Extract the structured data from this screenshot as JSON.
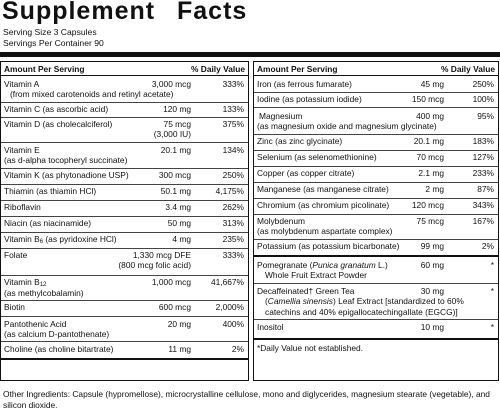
{
  "title": "Supplement Facts",
  "serving_size": "Serving Size 3 Capsules",
  "servings_per_container": "Servings Per Container 90",
  "header": {
    "amount": "Amount Per Serving",
    "dv": "% Daily Value"
  },
  "left": [
    {
      "name": "Vitamin A",
      "name2": "(from mixed carotenoids and retinyl acetate)",
      "amt": "3,000 mcg",
      "dv": "333%"
    },
    {
      "name": "Vitamin C (as ascorbic acid)",
      "amt": "120 mg",
      "dv": "133%"
    },
    {
      "name": "Vitamin D (as cholecalciferol)",
      "amt": "75 mcg",
      "amt2": "(3,000 IU)",
      "dv": "375%"
    },
    {
      "name": "Vitamin E",
      "name2": "(as d-alpha tocopheryl succinate)",
      "amt": "20.1 mg",
      "dv": "134%"
    },
    {
      "name": "Vitamin K (as phytonadione USP)",
      "amt": "300 mcg",
      "dv": "250%"
    },
    {
      "name": "Thiamin (as thiamin HCl)",
      "amt": "50.1 mg",
      "dv": "4,175%"
    },
    {
      "name": "Riboflavin",
      "amt": "3.4 mg",
      "dv": "262%"
    },
    {
      "name": "Niacin (as niacinamide)",
      "amt": "50 mg",
      "dv": "313%"
    },
    {
      "name_pre": "Vitamin B",
      "name_sub": "6",
      "name_post": " (as pyridoxine HCl)",
      "amt": "4 mg",
      "dv": "235%"
    },
    {
      "name": "Folate",
      "amt": "1,330 mcg DFE",
      "amt2": "(800 mcg folic acid)",
      "dv": "333%"
    },
    {
      "name_pre": "Vitamin B",
      "name_sub": "12",
      "name_post": "",
      "name2": "(as methylcobalamin)",
      "amt": "1,000 mcg",
      "dv": "41,667%"
    },
    {
      "name": "Biotin",
      "amt": "600 mcg",
      "dv": "2,000%"
    },
    {
      "name": "Pantothenic Acid",
      "name2": "(as calcium D-pantothenate)",
      "amt": "20 mg",
      "dv": "400%"
    },
    {
      "name": "Choline (as choline bitartrate)",
      "amt": "11 mg",
      "dv": "2%"
    }
  ],
  "right": [
    {
      "name": "Iron (as ferrous fumarate)",
      "amt": "45 mg",
      "dv": "250%"
    },
    {
      "name": "Iodine (as potassium iodide)",
      "amt": "150 mcg",
      "dv": "100%"
    },
    {
      "name": "Magnesium",
      "name2": "(as magnesium oxide and magnesium glycinate)",
      "amt": "400 mg",
      "dv": "95%"
    },
    {
      "name": "Zinc (as zinc glycinate)",
      "amt": "20.1 mg",
      "dv": "183%"
    },
    {
      "name": "Selenium (as selenomethionine)",
      "amt": "70 mcg",
      "dv": "127%"
    },
    {
      "name": "Copper (as copper citrate)",
      "amt": "2.1 mg",
      "dv": "233%"
    },
    {
      "name": "Manganese (as manganese citrate)",
      "amt": "2 mg",
      "dv": "87%"
    },
    {
      "name": "Chromium (as chromium picolinate)",
      "amt": "120 mcg",
      "dv": "343%"
    },
    {
      "name": "Molybdenum",
      "name2": "(as molybdenum aspartate complex)",
      "amt": "75 mcg",
      "dv": "167%"
    },
    {
      "name": "Potassium (as potassium bicarbonate)",
      "amt": "99 mg",
      "dv": "2%"
    },
    {
      "name_a": "Pomegranate (",
      "name_i": "Punica granatum",
      "name_b": " L.)",
      "name2": "Whole Fruit Extract Powder",
      "amt": "60 mg",
      "dv": "*"
    },
    {
      "name": "Decaffeinated† Green Tea",
      "name2_a": "(",
      "name2_i": "Camellia sinensis",
      "name2_b": ") Leaf Extract [standardized to 60%",
      "name3": "catechins and 40% epigallocatechingallate (EGCG)]",
      "amt": "30 mg",
      "dv": "*"
    },
    {
      "name": "Inositol",
      "amt": "10 mg",
      "dv": "*"
    }
  ],
  "footnote": "*Daily Value not established.",
  "other_ingredients": "Other Ingredients: Capsule (hypromellose), microcrystalline cellulose, mono and diglycerides, magnesium stearate (vegetable), and silicon dioxide."
}
